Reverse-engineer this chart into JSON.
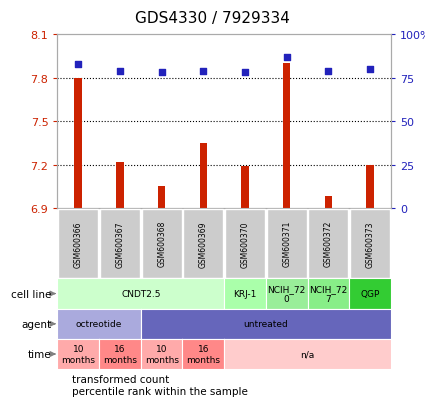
{
  "title": "GDS4330 / 7929334",
  "samples": [
    "GSM600366",
    "GSM600367",
    "GSM600368",
    "GSM600369",
    "GSM600370",
    "GSM600371",
    "GSM600372",
    "GSM600373"
  ],
  "bar_values": [
    7.8,
    7.22,
    7.05,
    7.35,
    7.19,
    7.9,
    6.98,
    7.2
  ],
  "scatter_values": [
    83,
    79,
    78,
    79,
    78,
    87,
    79,
    80
  ],
  "ylim": [
    6.9,
    8.1
  ],
  "yticks_left": [
    6.9,
    7.2,
    7.5,
    7.8,
    8.1
  ],
  "yticks_right": [
    0,
    25,
    50,
    75,
    100
  ],
  "bar_color": "#CC2200",
  "scatter_color": "#2222BB",
  "bar_bottom": 6.9,
  "cell_line_row": {
    "groups": [
      {
        "label": "CNDT2.5",
        "start": 0,
        "end": 4,
        "color": "#ccffcc"
      },
      {
        "label": "KRJ-1",
        "start": 4,
        "end": 5,
        "color": "#aaffaa"
      },
      {
        "label": "NCIH_72\n0",
        "start": 5,
        "end": 6,
        "color": "#99ee99"
      },
      {
        "label": "NCIH_72\n7",
        "start": 6,
        "end": 7,
        "color": "#88ee88"
      },
      {
        "label": "QGP",
        "start": 7,
        "end": 8,
        "color": "#33cc33"
      }
    ]
  },
  "agent_row": {
    "groups": [
      {
        "label": "octreotide",
        "start": 0,
        "end": 2,
        "color": "#aaaadd"
      },
      {
        "label": "untreated",
        "start": 2,
        "end": 8,
        "color": "#6666bb"
      }
    ]
  },
  "time_row": {
    "groups": [
      {
        "label": "10\nmonths",
        "start": 0,
        "end": 1,
        "color": "#ffaaaa"
      },
      {
        "label": "16\nmonths",
        "start": 1,
        "end": 2,
        "color": "#ff8888"
      },
      {
        "label": "10\nmonths",
        "start": 2,
        "end": 3,
        "color": "#ffaaaa"
      },
      {
        "label": "16\nmonths",
        "start": 3,
        "end": 4,
        "color": "#ff8888"
      },
      {
        "label": "n/a",
        "start": 4,
        "end": 8,
        "color": "#ffcccc"
      }
    ]
  },
  "legend_bar_color": "#CC2200",
  "legend_scatter_color": "#2222BB",
  "legend_bar_label": "transformed count",
  "legend_scatter_label": "percentile rank within the sample",
  "left_axis_color": "#CC2200",
  "right_axis_color": "#2222BB",
  "background_color": "#ffffff",
  "sample_box_color": "#cccccc"
}
